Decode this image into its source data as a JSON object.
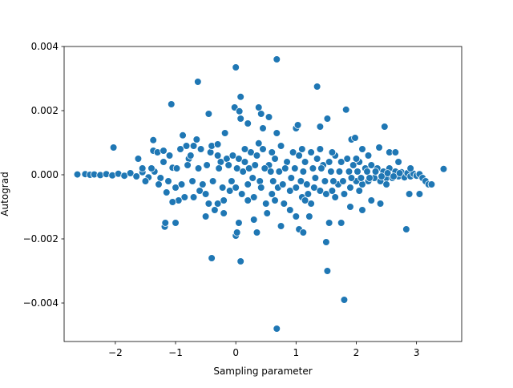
{
  "chart_data": {
    "type": "scatter",
    "title": "",
    "xlabel": "Sampling parameter",
    "ylabel": "Autograd",
    "xlim": [
      -2.85,
      3.75
    ],
    "ylim": [
      -0.0052,
      0.004
    ],
    "x_ticks": [
      -2,
      -1,
      0,
      1,
      2,
      3
    ],
    "x_tick_labels": [
      "−2",
      "−1",
      "0",
      "1",
      "2",
      "3"
    ],
    "y_ticks": [
      -0.004,
      -0.002,
      0.0,
      0.002,
      0.004
    ],
    "y_tick_labels": [
      "−0.004",
      "−0.002",
      "0.000",
      "0.002",
      "0.004"
    ],
    "grid": false,
    "legend": "none",
    "marker_color": "#1f77b4",
    "marker_edge": "#ffffff",
    "points": [
      [
        -2.63,
        1e-05
      ],
      [
        -2.5,
        2e-05
      ],
      [
        -2.42,
        0.0
      ],
      [
        -2.35,
        1e-05
      ],
      [
        -2.25,
        -1e-05
      ],
      [
        -2.15,
        2e-05
      ],
      [
        -2.05,
        -2e-05
      ],
      [
        -1.95,
        3e-05
      ],
      [
        -1.85,
        -3e-05
      ],
      [
        -1.75,
        5e-05
      ],
      [
        -1.65,
        -5e-05
      ],
      [
        -1.55,
        8e-05
      ],
      [
        -1.45,
        -8e-05
      ],
      [
        -1.35,
        0.0001
      ],
      [
        -1.25,
        -0.0001
      ],
      [
        -2.03,
        0.00085
      ],
      [
        -1.62,
        0.0005
      ],
      [
        -1.5,
        -0.0002
      ],
      [
        -1.4,
        0.0002
      ],
      [
        -1.37,
        0.00108
      ],
      [
        -1.37,
        0.00075
      ],
      [
        -1.3,
        0.0007
      ],
      [
        -1.28,
        -0.0003
      ],
      [
        -1.18,
        -0.00162
      ],
      [
        -1.17,
        -0.0015
      ],
      [
        -1.15,
        -0.00055
      ],
      [
        -1.1,
        0.0006
      ],
      [
        -1.05,
        0.00022
      ],
      [
        -1.0,
        -0.0004
      ],
      [
        -1.0,
        -0.0015
      ],
      [
        -0.92,
        0.0008
      ],
      [
        -0.88,
        0.00123
      ],
      [
        -0.85,
        -0.0007
      ],
      [
        -0.82,
        0.0009
      ],
      [
        -0.78,
        0.0005
      ],
      [
        -0.7,
        0.0009
      ],
      [
        -0.65,
        0.0011
      ],
      [
        -0.6,
        -0.0005
      ],
      [
        -0.58,
        0.0008
      ],
      [
        -0.5,
        -0.0006
      ],
      [
        -0.45,
        -0.0009
      ],
      [
        -0.42,
        0.0007
      ],
      [
        -0.35,
        -0.0011
      ],
      [
        -0.3,
        0.0006
      ],
      [
        -0.25,
        0.0004
      ],
      [
        -0.2,
        -0.0008
      ],
      [
        -0.15,
        0.0005
      ],
      [
        -0.1,
        -0.0005
      ],
      [
        -0.05,
        0.0006
      ],
      [
        0.0,
        -0.0004
      ],
      [
        0.05,
        0.0005
      ],
      [
        0.1,
        -0.0006
      ],
      [
        0.15,
        0.0004
      ],
      [
        0.2,
        -0.0003
      ],
      [
        0.25,
        0.0007
      ],
      [
        0.3,
        -0.0007
      ],
      [
        0.35,
        0.0006
      ],
      [
        0.4,
        -0.0002
      ],
      [
        0.45,
        0.0008
      ],
      [
        0.5,
        -0.0009
      ],
      [
        0.55,
        0.0003
      ],
      [
        0.6,
        -0.0006
      ],
      [
        0.65,
        0.0005
      ],
      [
        0.7,
        -0.0004
      ],
      [
        0.75,
        0.0009
      ],
      [
        0.8,
        -0.0009
      ],
      [
        0.85,
        0.0004
      ],
      [
        0.9,
        -0.0005
      ],
      [
        0.95,
        0.0007
      ],
      [
        1.0,
        -0.0004
      ],
      [
        1.05,
        0.0006
      ],
      [
        1.1,
        -0.0007
      ],
      [
        1.15,
        0.0004
      ],
      [
        1.2,
        -0.0006
      ],
      [
        1.25,
        0.0007
      ],
      [
        1.3,
        -0.0004
      ],
      [
        1.35,
        0.0005
      ],
      [
        1.4,
        -0.0005
      ],
      [
        1.45,
        0.0003
      ],
      [
        1.5,
        -0.0006
      ],
      [
        1.55,
        0.0004
      ],
      [
        1.6,
        -0.0005
      ],
      [
        1.65,
        0.0006
      ],
      [
        1.7,
        -0.0003
      ],
      [
        1.75,
        0.0004
      ],
      [
        1.8,
        -0.0006
      ],
      [
        1.85,
        0.0005
      ],
      [
        1.9,
        -0.0004
      ],
      [
        1.95,
        0.0003
      ],
      [
        2.0,
        -0.0002
      ],
      [
        2.05,
        0.0004
      ],
      [
        2.1,
        -0.0003
      ],
      [
        2.15,
        0.0002
      ],
      [
        2.2,
        -0.0002
      ],
      [
        2.25,
        0.0003
      ],
      [
        2.3,
        -0.0001
      ],
      [
        2.35,
        0.0002
      ],
      [
        2.4,
        -0.0002
      ],
      [
        2.45,
        0.0001
      ],
      [
        2.5,
        -0.0001
      ],
      [
        2.55,
        0.0002
      ],
      [
        2.6,
        -0.0001
      ],
      [
        2.65,
        0.0001
      ],
      [
        2.7,
        -5e-05
      ],
      [
        2.75,
        8e-05
      ],
      [
        2.8,
        -8e-05
      ],
      [
        2.85,
        5e-05
      ],
      [
        2.9,
        -5e-05
      ],
      [
        2.95,
        3e-05
      ],
      [
        3.0,
        -3e-05
      ],
      [
        3.05,
        2e-05
      ],
      [
        3.1,
        -0.0001
      ],
      [
        3.15,
        -0.0002
      ],
      [
        3.2,
        -0.0003
      ],
      [
        3.45,
        0.00018
      ],
      [
        -0.63,
        0.0029
      ],
      [
        -0.45,
        0.0019
      ],
      [
        -0.18,
        0.0013
      ],
      [
        -0.02,
        0.0021
      ],
      [
        0.0,
        0.00335
      ],
      [
        0.06,
        0.00198
      ],
      [
        0.08,
        0.00243
      ],
      [
        0.08,
        0.00175
      ],
      [
        0.2,
        0.0016
      ],
      [
        0.38,
        0.0021
      ],
      [
        0.42,
        0.0019
      ],
      [
        0.45,
        0.00145
      ],
      [
        0.55,
        0.0018
      ],
      [
        0.68,
        0.0036
      ],
      [
        0.68,
        0.0013
      ],
      [
        1.0,
        0.00145
      ],
      [
        1.03,
        0.00155
      ],
      [
        1.35,
        0.00275
      ],
      [
        1.4,
        0.0015
      ],
      [
        1.52,
        0.00175
      ],
      [
        1.83,
        0.00203
      ],
      [
        1.92,
        0.0011
      ],
      [
        1.98,
        0.00115
      ],
      [
        2.1,
        0.0008
      ],
      [
        2.2,
        0.0006
      ],
      [
        2.38,
        0.00085
      ],
      [
        2.47,
        0.0015
      ],
      [
        2.55,
        0.0007
      ],
      [
        2.65,
        0.0007
      ],
      [
        -1.07,
        0.0022
      ],
      [
        -0.4,
        -0.0026
      ],
      [
        0.0,
        -0.0019
      ],
      [
        0.02,
        -0.0018
      ],
      [
        0.08,
        -0.0027
      ],
      [
        0.3,
        -0.0014
      ],
      [
        0.35,
        -0.0018
      ],
      [
        0.52,
        -0.0012
      ],
      [
        0.68,
        -0.0048
      ],
      [
        0.75,
        -0.0016
      ],
      [
        1.0,
        -0.0013
      ],
      [
        1.05,
        -0.0017
      ],
      [
        1.12,
        -0.0018
      ],
      [
        1.22,
        -0.0013
      ],
      [
        1.5,
        -0.0021
      ],
      [
        1.52,
        -0.003
      ],
      [
        1.55,
        -0.0015
      ],
      [
        1.75,
        -0.0015
      ],
      [
        1.8,
        -0.0039
      ],
      [
        1.9,
        -0.001
      ],
      [
        2.1,
        -0.0011
      ],
      [
        2.4,
        -0.0009
      ],
      [
        2.83,
        -0.0017
      ],
      [
        2.88,
        -0.0006
      ],
      [
        3.05,
        -0.0006
      ],
      [
        -0.5,
        -0.0013
      ],
      [
        -0.95,
        -0.0008
      ],
      [
        -0.2,
        -0.0012
      ],
      [
        0.05,
        -0.0015
      ],
      [
        0.9,
        -0.0011
      ],
      [
        1.25,
        -0.0009
      ],
      [
        -1.2,
        0.0004
      ],
      [
        -1.12,
        -0.0002
      ],
      [
        -0.98,
        0.0002
      ],
      [
        -0.9,
        -0.0003
      ],
      [
        -0.8,
        0.0003
      ],
      [
        -0.72,
        -0.0002
      ],
      [
        -0.62,
        0.0002
      ],
      [
        -0.55,
        -0.0003
      ],
      [
        -0.48,
        0.0003
      ],
      [
        -0.38,
        -0.0002
      ],
      [
        -0.28,
        0.0002
      ],
      [
        -0.22,
        -0.0004
      ],
      [
        -0.12,
        0.0003
      ],
      [
        -0.07,
        -0.0002
      ],
      [
        0.02,
        0.0002
      ],
      [
        0.12,
        0.0001
      ],
      [
        0.22,
        0.0002
      ],
      [
        0.28,
        -0.0001
      ],
      [
        0.32,
        0.0003
      ],
      [
        0.42,
        -0.0004
      ],
      [
        0.48,
        0.0002
      ],
      [
        0.58,
        0.0001
      ],
      [
        0.62,
        -0.0002
      ],
      [
        0.72,
        0.0001
      ],
      [
        0.78,
        -0.0003
      ],
      [
        0.82,
        0.0002
      ],
      [
        0.92,
        -0.0001
      ],
      [
        0.98,
        0.0002
      ],
      [
        1.08,
        -0.0002
      ],
      [
        1.12,
        0.0001
      ],
      [
        1.18,
        -0.0003
      ],
      [
        1.28,
        0.0002
      ],
      [
        1.32,
        -0.0001
      ],
      [
        1.42,
        0.0002
      ],
      [
        1.48,
        -0.0002
      ],
      [
        1.58,
        0.0001
      ],
      [
        1.62,
        -0.0002
      ],
      [
        1.72,
        0.0001
      ],
      [
        1.78,
        -0.0002
      ],
      [
        1.88,
        0.0001
      ],
      [
        1.92,
        -0.0001
      ],
      [
        2.02,
        0.0001
      ],
      [
        2.08,
        -0.0001
      ],
      [
        2.18,
        0.0001
      ],
      [
        2.22,
        -0.0001
      ],
      [
        2.32,
        0.0001
      ],
      [
        2.42,
        -5e-05
      ],
      [
        2.52,
        5e-05
      ],
      [
        2.62,
        -5e-05
      ],
      [
        2.72,
        5e-05
      ],
      [
        -0.75,
        0.0006
      ],
      [
        -0.4,
        0.0009
      ],
      [
        0.15,
        0.0008
      ],
      [
        0.6,
        0.0007
      ],
      [
        1.1,
        0.0008
      ],
      [
        1.6,
        0.0007
      ],
      [
        2.0,
        0.0005
      ],
      [
        -0.7,
        -0.0007
      ],
      [
        -0.3,
        -0.0009
      ],
      [
        0.2,
        -0.0008
      ],
      [
        0.65,
        -0.0008
      ],
      [
        1.15,
        -0.0008
      ],
      [
        1.65,
        -0.0007
      ],
      [
        2.05,
        -0.0005
      ],
      [
        2.5,
        -0.0003
      ],
      [
        -1.2,
        0.00075
      ],
      [
        -1.05,
        -0.00085
      ],
      [
        -0.3,
        0.00095
      ],
      [
        0.38,
        0.00098
      ],
      [
        1.4,
        0.0008
      ],
      [
        2.25,
        -0.0008
      ],
      [
        2.7,
        0.0004
      ],
      [
        2.9,
        0.0002
      ],
      [
        3.25,
        -0.0003
      ],
      [
        -1.55,
        0.0002
      ]
    ]
  }
}
